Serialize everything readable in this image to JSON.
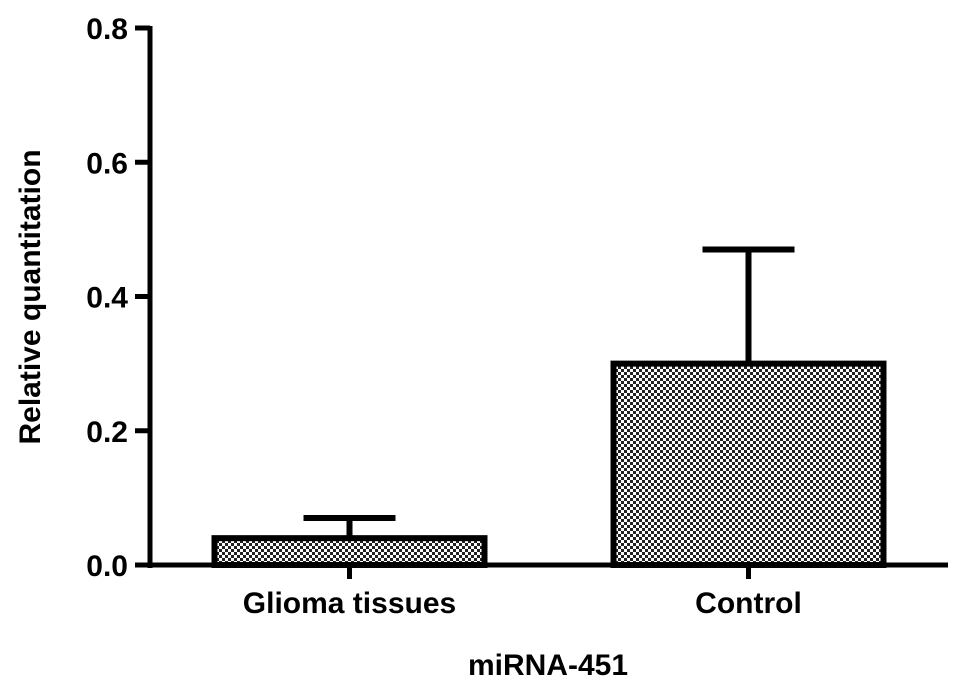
{
  "chart_data": {
    "type": "bar",
    "title": "",
    "xlabel": "miRNA-451",
    "ylabel": "Relative quantitation",
    "categories": [
      "Glioma tissues",
      "Control"
    ],
    "series": [
      {
        "values": [
          0.04,
          0.3
        ],
        "error": [
          0.03,
          0.17
        ]
      }
    ],
    "ylim": [
      0,
      0.8
    ],
    "yticks": [
      "0.0",
      "0.2",
      "0.4",
      "0.6",
      "0.8"
    ],
    "grid": false,
    "legend": "none",
    "bar_fill_pattern": "checkered",
    "colors": {
      "bar_fill_dark": "#000000",
      "bar_fill_light": "#ffffff",
      "axis": "#000000"
    }
  }
}
